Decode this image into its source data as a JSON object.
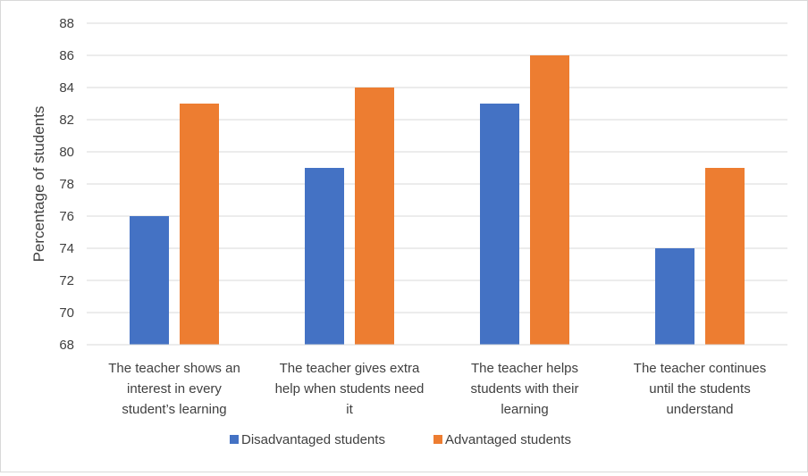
{
  "chart_data": {
    "type": "bar",
    "title": "",
    "xlabel": "",
    "ylabel": "Percentage of students",
    "ylim": [
      68,
      88
    ],
    "ytick_step": 2,
    "grid": true,
    "legend_position": "bottom",
    "categories": [
      [
        "The teacher shows an",
        "interest in every",
        "student’s learning"
      ],
      [
        "The teacher gives extra",
        "help when students need",
        "it"
      ],
      [
        "The teacher helps",
        "students with their",
        "learning"
      ],
      [
        "The teacher continues",
        "until the students",
        "understand"
      ]
    ],
    "series": [
      {
        "name": "Disadvantaged students",
        "color": "#4472c4",
        "values": [
          76,
          79,
          83,
          74
        ]
      },
      {
        "name": "Advantaged students",
        "color": "#ed7d31",
        "values": [
          83,
          84,
          86,
          79
        ]
      }
    ]
  }
}
